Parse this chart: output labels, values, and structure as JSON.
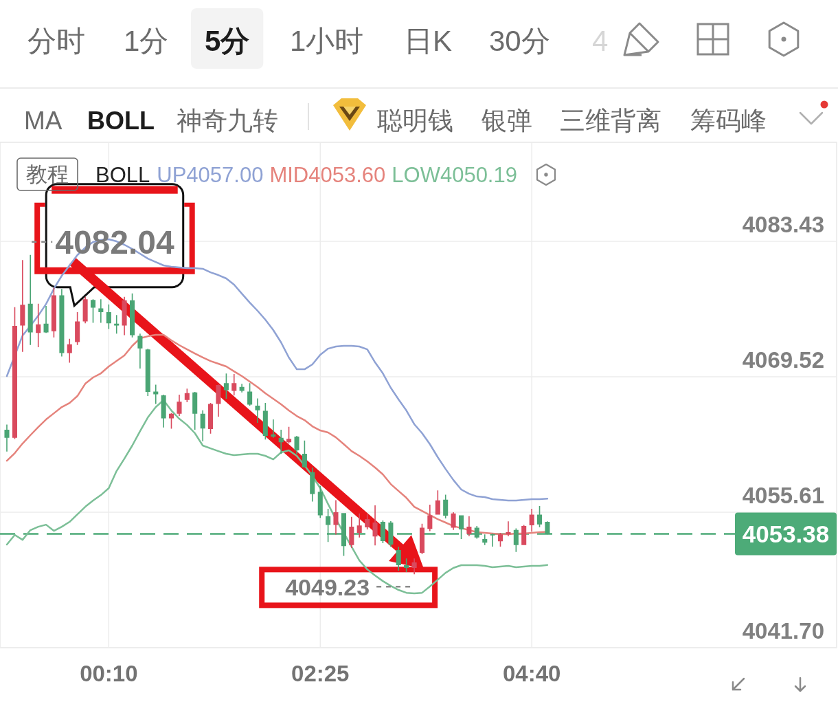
{
  "chart_data": {
    "type": "candlestick",
    "x": [
      -0.917,
      -0.833,
      -0.75,
      -0.667,
      -0.583,
      -0.5,
      -0.417,
      -0.333,
      -0.25,
      -0.167,
      -0.083,
      0,
      0.083,
      0.167,
      0.25,
      0.333,
      0.417,
      0.5,
      0.583,
      0.667,
      0.75,
      0.833,
      0.917,
      1,
      1.083,
      1.167,
      1.25,
      1.333,
      1.417,
      1.5,
      1.583,
      1.667,
      1.75,
      1.833,
      1.917,
      2,
      2.083,
      2.167,
      2.25,
      2.333,
      2.417,
      2.5,
      2.583,
      2.667,
      2.75,
      2.833,
      2.917,
      3,
      3.083,
      3.167,
      3.25,
      3.333,
      3.417,
      3.5,
      3.583,
      3.667,
      3.75,
      3.833,
      3.917,
      4,
      4.083,
      4.167,
      4.25,
      4.333,
      4.417,
      4.5,
      4.583,
      4.667,
      4.75,
      4.833
    ],
    "ohlc": [
      [
        4064.08,
        4064.62,
        4061.84,
        4063.25
      ],
      [
        4063.25,
        4076.67,
        4063.13,
        4074.74
      ],
      [
        4074.79,
        4081.5,
        4072.08,
        4076.91
      ],
      [
        4077.02,
        4082.04,
        4072.79,
        4074.08
      ],
      [
        4074.03,
        4077.02,
        4072.55,
        4074.9
      ],
      [
        4074.97,
        4076.79,
        4074.03,
        4074.08
      ],
      [
        4074.2,
        4078.67,
        4073.56,
        4077.89
      ],
      [
        4077.89,
        4078.55,
        4071.61,
        4071.96
      ],
      [
        4071.96,
        4073.42,
        4070.97,
        4072.86
      ],
      [
        4073.09,
        4076.15,
        4072.79,
        4075.21
      ],
      [
        4075.21,
        4077.73,
        4075.02,
        4077.49
      ],
      [
        4077.42,
        4077.49,
        4075.07,
        4076.62
      ],
      [
        4076.55,
        4077.49,
        4075.07,
        4076.15
      ],
      [
        4076.15,
        4076.95,
        4074.43,
        4075.02
      ],
      [
        4074.97,
        4075.85,
        4073.96,
        4074.79
      ],
      [
        4074.79,
        4077.73,
        4073.8,
        4077.38
      ],
      [
        4077.38,
        4078.08,
        4073.56,
        4073.8
      ],
      [
        4073.73,
        4073.96,
        4070.36,
        4072.43
      ],
      [
        4072.32,
        4072.39,
        4067.54,
        4067.96
      ],
      [
        4068.01,
        4068.71,
        4066.74,
        4067.72
      ],
      [
        4067.61,
        4067.68,
        4064.31,
        4065.25
      ],
      [
        4065.25,
        4065.79,
        4064.19,
        4065.72
      ],
      [
        4065.72,
        4067.68,
        4065.49,
        4066.97
      ],
      [
        4067.14,
        4068.31,
        4066.9,
        4067.84
      ],
      [
        4067.92,
        4067.96,
        4064.08,
        4065.73
      ],
      [
        4065.73,
        4066.08,
        4062.9,
        4064.2
      ],
      [
        4064.15,
        4066.83,
        4063.68,
        4066.74
      ],
      [
        4066.74,
        4068.72,
        4065.42,
        4068.67
      ],
      [
        4068.86,
        4069.85,
        4067.26,
        4068.15
      ],
      [
        4068.08,
        4069.8,
        4067.61,
        4068.86
      ],
      [
        4068.48,
        4068.79,
        4067.92,
        4068.08
      ],
      [
        4068.01,
        4068.86,
        4066.55,
        4066.67
      ],
      [
        4066.55,
        4067.3,
        4064.79,
        4066.08
      ],
      [
        4066.03,
        4066.83,
        4063.07,
        4063.44
      ],
      [
        4063.61,
        4065.14,
        4063.26,
        4063.37
      ],
      [
        4063.26,
        4064.08,
        4061.61,
        4062.79
      ],
      [
        4062.79,
        4064.39,
        4062.67,
        4063.14
      ],
      [
        4063.37,
        4063.44,
        4061.61,
        4061.96
      ],
      [
        4061.61,
        4062.97,
        4060.2,
        4060.24
      ],
      [
        4059.73,
        4060.2,
        4056.71,
        4057.49
      ],
      [
        4057.72,
        4058.31,
        4055.02,
        4055.3
      ],
      [
        4055.21,
        4055.96,
        4052.55,
        4054.31
      ],
      [
        4054.31,
        4056.85,
        4053.32,
        4055.61
      ],
      [
        4055.53,
        4055.53,
        4051.13,
        4052.14
      ],
      [
        4052.24,
        4055.13,
        4051.96,
        4054.12
      ],
      [
        4053.49,
        4055.49,
        4053.02,
        4054.26
      ],
      [
        4054.05,
        4055.39,
        4053.84,
        4054.9
      ],
      [
        4053.13,
        4056.31,
        4052.21,
        4054.55
      ],
      [
        4054.62,
        4054.76,
        4052.43,
        4052.64
      ],
      [
        4054.55,
        4054.69,
        4052.07,
        4052.29
      ],
      [
        4051.72,
        4052.07,
        4049.6,
        4050.17
      ],
      [
        4050.17,
        4050.87,
        4049.46,
        4049.89
      ],
      [
        4049.89,
        4050.87,
        4049.23,
        4050.45
      ],
      [
        4051.44,
        4054.43,
        4051.3,
        4054.03
      ],
      [
        4053.89,
        4056.39,
        4053.66,
        4055.3
      ],
      [
        4055.37,
        4057.85,
        4055.37,
        4056.83
      ],
      [
        4056.9,
        4057.42,
        4054.97,
        4055.26
      ],
      [
        4054.03,
        4055.61,
        4053.8,
        4055.49
      ],
      [
        4055.3,
        4055.3,
        4052.86,
        4053.84
      ],
      [
        4053.37,
        4055.21,
        4053.14,
        4054.13
      ],
      [
        4054.03,
        4054.2,
        4052.9,
        4053.02
      ],
      [
        4052.86,
        4053.33,
        4052.24,
        4052.48
      ],
      [
        4053.37,
        4053.42,
        4052.08,
        4053.23
      ],
      [
        4052.62,
        4053.49,
        4052.08,
        4053.33
      ],
      [
        4053.33,
        4054.67,
        4053.14,
        4053.56
      ],
      [
        4053.8,
        4053.96,
        4051.54,
        4052.24
      ],
      [
        4052.24,
        4054.31,
        4052.24,
        4054.2
      ],
      [
        4054.27,
        4055.96,
        4053.61,
        4055.37
      ],
      [
        4055.37,
        4056.25,
        4054.08,
        4054.36
      ],
      [
        4054.62,
        4054.67,
        4053.33,
        4053.38
      ]
    ],
    "colors": [
      "#4aa574",
      "#d94a5e",
      "#d94a5e",
      "#4aa574",
      "#d94a5e",
      "#4aa574",
      "#d94a5e",
      "#4aa574",
      "#d94a5e",
      "#d94a5e",
      "#d94a5e",
      "#4aa574",
      "#4aa574",
      "#4aa574",
      "#4aa574",
      "#d94a5e",
      "#4aa574",
      "#4aa574",
      "#4aa574",
      "#4aa574",
      "#4aa574",
      "#d94a5e",
      "#d94a5e",
      "#d94a5e",
      "#4aa574",
      "#4aa574",
      "#d94a5e",
      "#d94a5e",
      "#4aa574",
      "#d94a5e",
      "#4aa574",
      "#4aa574",
      "#4aa574",
      "#4aa574",
      "#4aa574",
      "#4aa574",
      "#d94a5e",
      "#4aa574",
      "#4aa574",
      "#4aa574",
      "#4aa574",
      "#4aa574",
      "#d94a5e",
      "#4aa574",
      "#d94a5e",
      "#d94a5e",
      "#d94a5e",
      "#d94a5e",
      "#4aa574",
      "#4aa574",
      "#4aa574",
      "#4aa574",
      "#d94a5e",
      "#d94a5e",
      "#d94a5e",
      "#d94a5e",
      "#4aa574",
      "#d94a5e",
      "#4aa574",
      "#d94a5e",
      "#4aa574",
      "#4aa574",
      "#4aa574",
      "#d94a5e",
      "#d94a5e",
      "#4aa574",
      "#d94a5e",
      "#d94a5e",
      "#4aa574",
      "#4aa574"
    ],
    "series": [
      {
        "type": "line",
        "name": "UP4057.00",
        "color": "#8fa2d4",
        "x": [
          -0.917,
          -0.75,
          -0.667,
          -0.583,
          -0.5,
          -0.417,
          -0.333,
          -0.25,
          -0.167,
          -0.083,
          0,
          0.083,
          0.167,
          0.25,
          0.333,
          0.417,
          0.5,
          0.583,
          0.667,
          0.75,
          0.833,
          0.917,
          1,
          1.083,
          1.167,
          1.25,
          1.333,
          1.417,
          1.5,
          1.583,
          1.667,
          1.75,
          1.833,
          1.917,
          2,
          2.083,
          2.167,
          2.25,
          2.333,
          2.417,
          2.5,
          2.583,
          2.667,
          2.75,
          2.833,
          2.917,
          3,
          3.083,
          3.167,
          3.25,
          3.333,
          3.417,
          3.5,
          3.583,
          3.667,
          3.75,
          3.833,
          3.917,
          4,
          4.083,
          4.167,
          4.25,
          4.333,
          4.417,
          4.5,
          4.583,
          4.667,
          4.75,
          4.833
        ],
        "values": [
          4069.59,
          4073.76,
          4074.74,
          4075.8,
          4077,
          4078.56,
          4079.9,
          4080.96,
          4082.02,
          4082.79,
          4083.36,
          4083.57,
          4083.64,
          4083.43,
          4083.08,
          4082.65,
          4082.16,
          4081.66,
          4081.31,
          4080.96,
          4080.82,
          4080.75,
          4080.68,
          4080.68,
          4080.61,
          4080.25,
          4079.97,
          4079.62,
          4078.98,
          4078.06,
          4077.14,
          4076.3,
          4075.38,
          4074.32,
          4073.05,
          4071.5,
          4070.29,
          4070.29,
          4070.79,
          4071.78,
          4072.41,
          4072.63,
          4072.7,
          4072.7,
          4072.63,
          4072.34,
          4071,
          4069.87,
          4068.39,
          4067.19,
          4066.06,
          4064.65,
          4063.73,
          4062.6,
          4061.26,
          4060.05,
          4058.92,
          4057.94,
          4057.51,
          4057.23,
          4057.16,
          4056.95,
          4056.88,
          4056.81,
          4056.81,
          4056.88,
          4056.95,
          4056.95,
          4057
        ]
      },
      {
        "type": "line",
        "name": "MID4053.60",
        "color": "#e5837c",
        "values": [
          4060.9,
          4061.68,
          4062.67,
          4063.52,
          4064.36,
          4065.14,
          4065.77,
          4066.41,
          4066.83,
          4067.54,
          4068.81,
          4069.45,
          4069.87,
          4070.58,
          4071.14,
          4071.71,
          4072.7,
          4073.47,
          4073.68,
          4073.83,
          4073.83,
          4073.26,
          4072.77,
          4072.34,
          4071.92,
          4071.5,
          4071.14,
          4070.86,
          4070.58,
          4070.08,
          4069.59,
          4069.02,
          4068.46,
          4067.82,
          4067.26,
          4066.69,
          4066.06,
          4065.49,
          4065.07,
          4064.43,
          4064.01,
          4063.8,
          4063.3,
          4062.6,
          4061.89,
          4061.4,
          4060.83,
          4060.2,
          4059.49,
          4058.5,
          4057.79,
          4057.09,
          4056.17,
          4055.75,
          4055.32,
          4054.9,
          4054.55,
          4054.19,
          4053.98,
          4053.77,
          4053.56,
          4053.49,
          4053.42,
          4053.35,
          4053.35,
          4053.42,
          4053.42,
          4053.49,
          4053.56,
          4053.6
        ]
      },
      {
        "type": "line",
        "name": "LOW4050.19",
        "color": "#7cbf97",
        "values": [
          4052.29,
          4053.28,
          4052.78,
          4053.77,
          4054.12,
          4054.33,
          4053.7,
          4054.12,
          4054.62,
          4055.39,
          4056.17,
          4056.81,
          4057.37,
          4058.08,
          4059.84,
          4061.11,
          4062.46,
          4063.94,
          4065.35,
          4066.41,
          4067.12,
          4066.06,
          4065.21,
          4064.57,
          4063.73,
          4062.46,
          4062.17,
          4061.89,
          4061.61,
          4061.47,
          4061.54,
          4061.61,
          4061.61,
          4061.4,
          4061.04,
          4061.75,
          4061.96,
          4061.4,
          4060.41,
          4059.35,
          4058.08,
          4056.45,
          4054.9,
          4053.49,
          4052.07,
          4050.66,
          4049.74,
          4049.11,
          4048.54,
          4048.05,
          4047.63,
          4047.34,
          4047.27,
          4047.34,
          4047.98,
          4048.68,
          4049.39,
          4049.89,
          4050.17,
          4050.17,
          4050.17,
          4050.1,
          4049.96,
          4050.03,
          4050.1,
          4049.96,
          4050.03,
          4050.1,
          4050.1,
          4050.19
        ]
      }
    ],
    "legend_title": "BOLL",
    "legend": "top left",
    "xlim": [
      -0.99,
      7.91
    ],
    "xticks": [
      {
        "value": 0.167,
        "label": "00:10"
      },
      {
        "value": 2.417,
        "label": "02:25"
      },
      {
        "value": 4.667,
        "label": "04:40"
      }
    ],
    "ylim": [
      4041.7,
      4093.6
    ],
    "yticks": [
      {
        "value": 4041.7,
        "label": "4041.70"
      },
      4055.61,
      4069.52,
      4083.43
    ],
    "grid": true,
    "ref_lines": [
      {
        "axis": "y",
        "value": 4053.38,
        "color": "#4dab78",
        "line_style": "dashed"
      }
    ],
    "annotations": [
      "分时",
      "1分",
      "5分",
      "1小时",
      "日K",
      "30分",
      "4",
      "MA",
      "BOLL",
      "神奇九转",
      "聪明钱",
      "银弹",
      "三维背离",
      "筹码峰",
      "教程",
      {
        "text": "4082.04",
        "x": -0.667,
        "y": 4082.04
      },
      {
        "text": "4049.23",
        "x": 3.417,
        "y": 4049.23
      },
      "4053.38"
    ]
  }
}
